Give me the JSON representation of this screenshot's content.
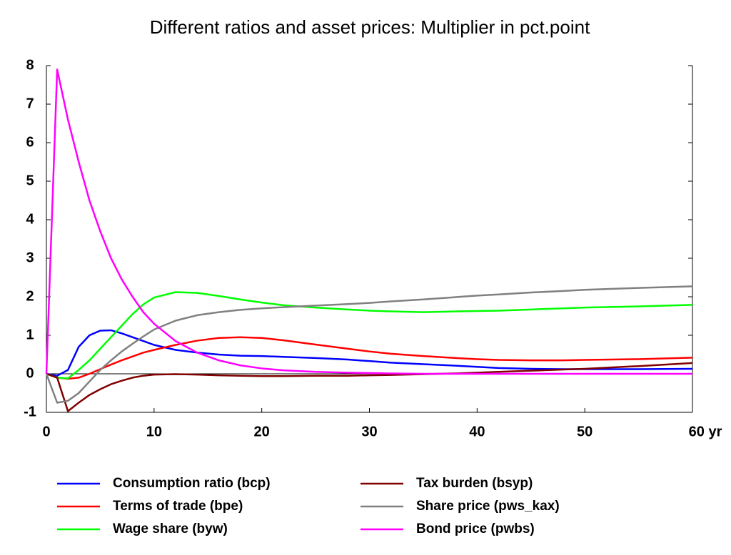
{
  "chart_data": {
    "type": "line",
    "title": "Different ratios and asset prices: Multiplier in pct.point",
    "x": [
      0,
      1,
      2,
      3,
      4,
      5,
      6,
      7,
      8,
      9,
      10,
      12,
      14,
      16,
      18,
      20,
      22,
      25,
      28,
      30,
      32,
      35,
      38,
      40,
      42,
      45,
      48,
      50,
      55,
      60
    ],
    "xlim": [
      0,
      60
    ],
    "xticks": [
      0,
      10,
      20,
      30,
      40,
      50,
      {
        "value": 60,
        "label": "60 yr"
      }
    ],
    "ylim": [
      -1,
      8
    ],
    "yticks": [
      -1,
      0,
      1,
      2,
      3,
      4,
      5,
      6,
      7,
      8
    ],
    "grid": false,
    "legend": "bottom",
    "series": [
      {
        "name": "Consumption ratio (bcp)",
        "color": "#0000ff",
        "values": [
          0,
          -0.05,
          0.1,
          0.7,
          1.0,
          1.12,
          1.13,
          1.05,
          0.95,
          0.85,
          0.75,
          0.62,
          0.55,
          0.5,
          0.47,
          0.46,
          0.44,
          0.41,
          0.37,
          0.33,
          0.29,
          0.25,
          0.21,
          0.18,
          0.15,
          0.13,
          0.12,
          0.12,
          0.12,
          0.13
        ]
      },
      {
        "name": "Terms of trade (bpe)",
        "color": "#ff0000",
        "values": [
          0,
          -0.1,
          -0.13,
          -0.1,
          0,
          0.12,
          0.24,
          0.35,
          0.45,
          0.55,
          0.62,
          0.75,
          0.86,
          0.93,
          0.95,
          0.93,
          0.87,
          0.76,
          0.65,
          0.58,
          0.52,
          0.46,
          0.41,
          0.38,
          0.36,
          0.35,
          0.35,
          0.36,
          0.38,
          0.42
        ]
      },
      {
        "name": "Wage share (byw)",
        "color": "#00ff00",
        "values": [
          0,
          -0.1,
          -0.12,
          0.1,
          0.35,
          0.65,
          0.95,
          1.25,
          1.55,
          1.8,
          1.98,
          2.12,
          2.1,
          2.02,
          1.93,
          1.85,
          1.78,
          1.72,
          1.67,
          1.64,
          1.62,
          1.6,
          1.62,
          1.63,
          1.64,
          1.67,
          1.7,
          1.72,
          1.75,
          1.79
        ]
      },
      {
        "name": "Tax burden (bsyp)",
        "color": "#800000",
        "values": [
          0,
          -0.1,
          -0.97,
          -0.75,
          -0.55,
          -0.4,
          -0.27,
          -0.18,
          -0.1,
          -0.05,
          -0.02,
          -0.01,
          -0.02,
          -0.04,
          -0.05,
          -0.06,
          -0.06,
          -0.05,
          -0.05,
          -0.04,
          -0.03,
          -0.01,
          0.01,
          0.03,
          0.05,
          0.08,
          0.11,
          0.13,
          0.2,
          0.28
        ]
      },
      {
        "name": "Share price (pws_kax)",
        "color": "#808080",
        "values": [
          0,
          -0.75,
          -0.7,
          -0.5,
          -0.2,
          0.1,
          0.35,
          0.58,
          0.78,
          0.97,
          1.15,
          1.38,
          1.52,
          1.6,
          1.66,
          1.7,
          1.73,
          1.77,
          1.81,
          1.84,
          1.88,
          1.93,
          1.99,
          2.03,
          2.06,
          2.11,
          2.15,
          2.18,
          2.23,
          2.27
        ]
      },
      {
        "name": "Bond price (pwbs)",
        "color": "#ff00ff",
        "values": [
          0,
          7.9,
          6.6,
          5.5,
          4.5,
          3.7,
          3.0,
          2.45,
          2.0,
          1.6,
          1.3,
          0.85,
          0.55,
          0.35,
          0.22,
          0.14,
          0.09,
          0.05,
          0.03,
          0.02,
          0.01,
          0,
          0,
          0,
          0,
          0,
          0,
          0,
          0,
          0
        ]
      }
    ]
  }
}
